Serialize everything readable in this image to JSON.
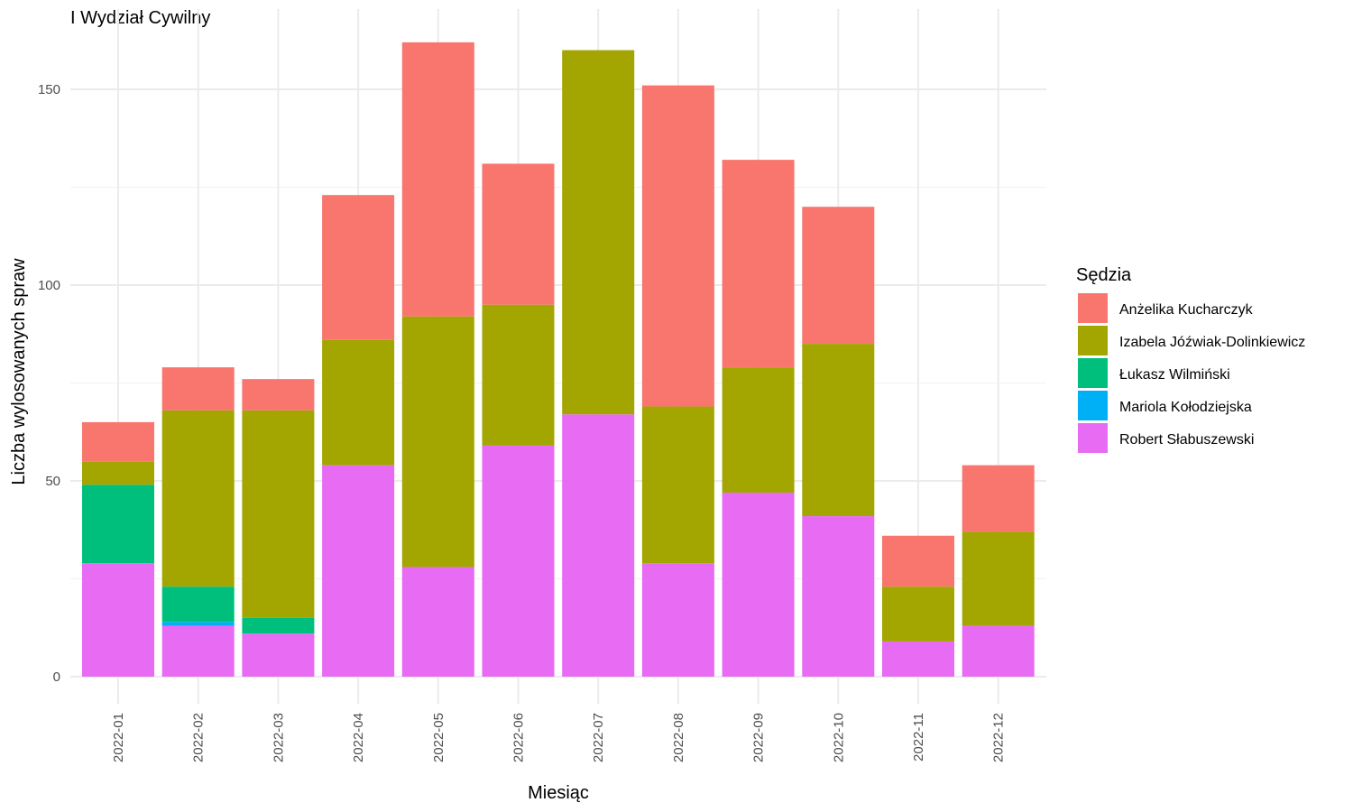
{
  "chart_data": {
    "type": "bar",
    "stacked": true,
    "title": "I Wydział Cywilny",
    "xlabel": "Miesiąc",
    "ylabel": "Liczba wylosowanych spraw",
    "ylim": [
      0,
      165
    ],
    "yticks": [
      0,
      50,
      100,
      150
    ],
    "grid": true,
    "legend_title": "Sędzia",
    "legend_position": "right",
    "categories": [
      "2022-01",
      "2022-02",
      "2022-03",
      "2022-04",
      "2022-05",
      "2022-06",
      "2022-07",
      "2022-08",
      "2022-09",
      "2022-10",
      "2022-11",
      "2022-12"
    ],
    "series": [
      {
        "name": "Anżelika Kucharczyk",
        "color": "#F8766D",
        "values": [
          10,
          11,
          8,
          37,
          70,
          36,
          0,
          82,
          53,
          35,
          13,
          17
        ]
      },
      {
        "name": "Izabela Jóźwiak-Dolinkiewicz",
        "color": "#A3A500",
        "values": [
          6,
          45,
          53,
          32,
          64,
          36,
          93,
          40,
          32,
          44,
          14,
          24
        ]
      },
      {
        "name": "Łukasz Wilmiński",
        "color": "#00BF7D",
        "values": [
          20,
          9,
          4,
          0,
          0,
          0,
          0,
          0,
          0,
          0,
          0,
          0
        ]
      },
      {
        "name": "Mariola Kołodziejska",
        "color": "#00B0F6",
        "values": [
          0,
          1,
          0,
          0,
          0,
          0,
          0,
          0,
          0,
          0,
          0,
          0
        ]
      },
      {
        "name": "Robert Słabuszewski",
        "color": "#E76BF3",
        "values": [
          29,
          13,
          11,
          54,
          28,
          59,
          67,
          29,
          47,
          41,
          9,
          13
        ]
      }
    ]
  }
}
